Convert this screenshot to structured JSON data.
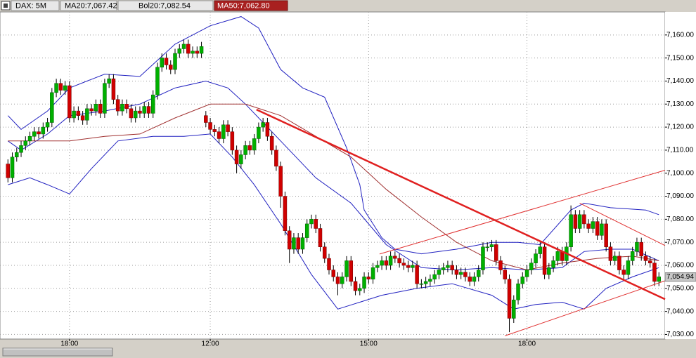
{
  "chart_data": {
    "type": "candlestick",
    "header_labels": [
      "DAX: 5M",
      "MA20:7,067.42",
      "Bol20:7,082.54",
      "MA50:7,062.80"
    ],
    "last_price": {
      "value": 7054.94,
      "label": "7,054.94"
    },
    "up_color": "#00b000",
    "down_color": "#d00000",
    "grid": true,
    "xlim": [
      -1.8,
      149.4
    ],
    "ylim": [
      7028,
      7170
    ],
    "xticks": [
      {
        "value": 14,
        "label": "18:00"
      },
      {
        "value": 46,
        "label": "12:00"
      },
      {
        "value": 82,
        "label": "15:00"
      },
      {
        "value": 118,
        "label": "18:00"
      }
    ],
    "yticks": [
      {
        "value": 7030,
        "label": "7,030.00"
      },
      {
        "value": 7040,
        "label": "7,040.00"
      },
      {
        "value": 7050,
        "label": "7,050.00"
      },
      {
        "value": 7060,
        "label": "7,060.00"
      },
      {
        "value": 7070,
        "label": "7,070.00"
      },
      {
        "value": 7080,
        "label": "7,080.00"
      },
      {
        "value": 7090,
        "label": "7,090.00"
      },
      {
        "value": 7100,
        "label": "7,100.00"
      },
      {
        "value": 7110,
        "label": "7,110.00"
      },
      {
        "value": 7120,
        "label": "7,120.00"
      },
      {
        "value": 7130,
        "label": "7,130.00"
      },
      {
        "value": 7140,
        "label": "7,140.00"
      },
      {
        "value": 7150,
        "label": "7,150.00"
      },
      {
        "value": 7160,
        "label": "7,160.00"
      }
    ],
    "open": [
      7104,
      7098,
      7107,
      7109,
      7112,
      7114,
      7116,
      7118,
      7117,
      7120,
      7122,
      7135,
      7139,
      7136,
      7138,
      7124,
      7127,
      7125,
      7123,
      7128,
      7127,
      7130,
      7126,
      7139,
      7141,
      7132,
      7127,
      7130,
      7128,
      7124,
      7127,
      7126,
      7129,
      7126,
      7134,
      7146,
      7150,
      7147,
      7145,
      7152,
      7154,
      7156,
      7152,
      7153,
      7152,
      7125,
      7122,
      7119,
      7118,
      7115,
      7121,
      7118,
      7110,
      7104,
      7108,
      7112,
      7110,
      7115,
      7120,
      7122,
      7116,
      7110,
      7103,
      7090,
      7075,
      7067,
      7072,
      7067,
      7072,
      7078,
      7080,
      7076,
      7068,
      7063,
      7058,
      7055,
      7052,
      7055,
      7062,
      7053,
      7049,
      7050,
      7055,
      7054,
      7059,
      7060,
      7062,
      7060,
      7064,
      7063,
      7061,
      7060,
      7059,
      7060,
      7052,
      7052,
      7053,
      7054,
      7056,
      7058,
      7059,
      7060,
      7058,
      7056,
      7057,
      7055,
      7053,
      7055,
      7058,
      7068,
      7068,
      7069,
      7062,
      7058,
      7054,
      7037,
      7045,
      7052,
      7055,
      7058,
      7061,
      7065,
      7068,
      7056,
      7059,
      7062,
      7066,
      7062,
      7068,
      7082,
      7076,
      7082,
      7078,
      7076,
      7079,
      7073,
      7078,
      7068,
      7062,
      7064,
      7058,
      7056,
      7062,
      7066,
      7070,
      7064,
      7062,
      7061,
      7053
    ],
    "high": [
      7106,
      7109,
      7111,
      7114,
      7116,
      7118,
      7120,
      7120,
      7122,
      7124,
      7137,
      7141,
      7141,
      7140,
      7140,
      7129,
      7129,
      7127,
      7130,
      7130,
      7132,
      7132,
      7141,
      7143,
      7143,
      7134,
      7132,
      7132,
      7130,
      7129,
      7129,
      7131,
      7131,
      7136,
      7148,
      7152,
      7152,
      7149,
      7154,
      7156,
      7158,
      7158,
      7155,
      7155,
      7157,
      7127,
      7124,
      7121,
      7120,
      7123,
      7123,
      7120,
      7112,
      7110,
      7114,
      7114,
      7117,
      7122,
      7124,
      7124,
      7118,
      7112,
      7105,
      7092,
      7077,
      7074,
      7074,
      7074,
      7080,
      7082,
      7082,
      7078,
      7070,
      7065,
      7060,
      7057,
      7057,
      7064,
      7064,
      7055,
      7052,
      7057,
      7057,
      7061,
      7062,
      7064,
      7064,
      7066,
      7066,
      7065,
      7063,
      7062,
      7062,
      7062,
      7054,
      7055,
      7056,
      7058,
      7060,
      7061,
      7062,
      7062,
      7060,
      7059,
      7059,
      7057,
      7057,
      7060,
      7070,
      7070,
      7071,
      7071,
      7064,
      7060,
      7056,
      7047,
      7054,
      7057,
      7060,
      7063,
      7067,
      7070,
      7070,
      7061,
      7064,
      7068,
      7068,
      7070,
      7086,
      7084,
      7084,
      7084,
      7080,
      7081,
      7081,
      7080,
      7080,
      7070,
      7066,
      7066,
      7060,
      7064,
      7068,
      7072,
      7072,
      7066,
      7064,
      7063,
      7057
    ],
    "low": [
      7096,
      7096,
      7105,
      7107,
      7110,
      7112,
      7114,
      7115,
      7115,
      7118,
      7120,
      7133,
      7134,
      7134,
      7122,
      7122,
      7123,
      7121,
      7121,
      7125,
      7125,
      7124,
      7124,
      7137,
      7130,
      7125,
      7125,
      7126,
      7122,
      7122,
      7124,
      7124,
      7124,
      7124,
      7132,
      7144,
      7145,
      7143,
      7143,
      7150,
      7152,
      7150,
      7150,
      7150,
      7150,
      7120,
      7117,
      7116,
      7113,
      7113,
      7116,
      7108,
      7100,
      7102,
      7106,
      7108,
      7108,
      7113,
      7118,
      7114,
      7108,
      7101,
      7085,
      7073,
      7061,
      7065,
      7065,
      7065,
      7070,
      7076,
      7074,
      7066,
      7061,
      7056,
      7053,
      7047,
      7050,
      7053,
      7051,
      7047,
      7047,
      7048,
      7052,
      7052,
      7057,
      7058,
      7058,
      7058,
      7061,
      7059,
      7058,
      7057,
      7057,
      7050,
      7050,
      7050,
      7051,
      7052,
      7054,
      7056,
      7057,
      7056,
      7054,
      7054,
      7053,
      7051,
      7051,
      7053,
      7056,
      7066,
      7066,
      7060,
      7056,
      7052,
      7031,
      7035,
      7043,
      7050,
      7053,
      7056,
      7059,
      7063,
      7054,
      7054,
      7057,
      7060,
      7060,
      7060,
      7066,
      7074,
      7074,
      7076,
      7074,
      7074,
      7071,
      7071,
      7066,
      7060,
      7060,
      7056,
      7054,
      7054,
      7060,
      7064,
      7062,
      7060,
      7059,
      7051,
      7051
    ],
    "close": [
      7098,
      7107,
      7109,
      7112,
      7114,
      7116,
      7118,
      7117,
      7120,
      7122,
      7135,
      7139,
      7136,
      7138,
      7124,
      7127,
      7125,
      7123,
      7128,
      7127,
      7130,
      7126,
      7139,
      7141,
      7132,
      7127,
      7130,
      7128,
      7124,
      7127,
      7126,
      7129,
      7126,
      7134,
      7146,
      7150,
      7147,
      7145,
      7152,
      7154,
      7156,
      7152,
      7153,
      7152,
      7155,
      7122,
      7119,
      7118,
      7115,
      7121,
      7118,
      7110,
      7104,
      7108,
      7112,
      7110,
      7115,
      7120,
      7122,
      7116,
      7110,
      7103,
      7090,
      7075,
      7067,
      7072,
      7067,
      7072,
      7078,
      7080,
      7076,
      7068,
      7063,
      7058,
      7055,
      7052,
      7055,
      7062,
      7053,
      7049,
      7050,
      7055,
      7054,
      7059,
      7060,
      7062,
      7060,
      7064,
      7063,
      7061,
      7060,
      7059,
      7060,
      7052,
      7052,
      7053,
      7054,
      7056,
      7058,
      7059,
      7060,
      7058,
      7056,
      7057,
      7055,
      7053,
      7055,
      7058,
      7068,
      7068,
      7069,
      7062,
      7058,
      7054,
      7037,
      7045,
      7052,
      7055,
      7058,
      7061,
      7065,
      7068,
      7056,
      7059,
      7062,
      7066,
      7062,
      7068,
      7082,
      7076,
      7082,
      7078,
      7076,
      7079,
      7073,
      7078,
      7068,
      7062,
      7064,
      7058,
      7056,
      7062,
      7066,
      7070,
      7064,
      7062,
      7061,
      7053,
      7055
    ],
    "series": [
      {
        "color": "#2020c0",
        "x": [
          0,
          3,
          9,
          14,
          22,
          30,
          38,
          46,
          53,
          57,
          62,
          67,
          72,
          77,
          80,
          81,
          85,
          88,
          94,
          102,
          110,
          116,
          121,
          128,
          131,
          137,
          145,
          148
        ],
        "values": [
          7125,
          7119,
          7127,
          7137,
          7143,
          7142,
          7156,
          7164,
          7168,
          7163,
          7145,
          7137,
          7133,
          7111,
          7095,
          7084,
          7072,
          7067,
          7065,
          7067,
          7070,
          7070,
          7069,
          7084,
          7087,
          7085,
          7084,
          7082
        ]
      },
      {
        "color": "#2020c0",
        "x": [
          0,
          3,
          9,
          14,
          22,
          30,
          38,
          45,
          50,
          54,
          62,
          70,
          78,
          86,
          94,
          102,
          110,
          118,
          126,
          131,
          137,
          142,
          148
        ],
        "values": [
          7114,
          7110,
          7117,
          7125,
          7127,
          7130,
          7137,
          7140,
          7137,
          7130,
          7114,
          7098,
          7087,
          7069,
          7059,
          7058,
          7059,
          7058,
          7059,
          7066,
          7067,
          7067,
          7062
        ]
      },
      {
        "color": "#2020c0",
        "x": [
          0,
          5,
          9,
          14,
          19,
          25,
          33,
          40,
          46,
          51,
          56,
          62,
          69,
          75,
          80,
          85,
          93,
          101,
          110,
          115,
          120,
          126,
          131,
          136,
          142,
          148
        ],
        "values": [
          7095,
          7098,
          7095,
          7091,
          7102,
          7114,
          7116,
          7116,
          7117,
          7107,
          7095,
          7078,
          7056,
          7041,
          7044,
          7047,
          7050,
          7052,
          7047,
          7041,
          7043,
          7044,
          7041,
          7050,
          7055,
          7059
        ]
      },
      {
        "color": "#a03030",
        "x": [
          0,
          8,
          14,
          22,
          30,
          38,
          46,
          54,
          62,
          70,
          78,
          86,
          94,
          102,
          110,
          118,
          126,
          134,
          142,
          148
        ],
        "values": [
          7114,
          7114,
          7114,
          7116,
          7117,
          7124,
          7130,
          7130,
          7125,
          7116,
          7107,
          7093,
          7081,
          7070,
          7062,
          7058,
          7061,
          7063,
          7064,
          7062
        ]
      }
    ],
    "trendlines": [
      {
        "color": "#e02020",
        "width": 2.5,
        "x": [
          56.5,
          149.4
        ],
        "values": [
          7127.6,
          7045.3
        ]
      },
      {
        "color": "#e03030",
        "width": 1,
        "x": [
          84.5,
          149.4
        ],
        "values": [
          7064.9,
          7101.3
        ]
      },
      {
        "color": "#e03030",
        "width": 1,
        "x": [
          113,
          149.4
        ],
        "values": [
          7029.4,
          7053.3
        ]
      },
      {
        "color": "#e03030",
        "width": 1,
        "x": [
          130,
          149.4
        ],
        "values": [
          7087,
          7068.6
        ]
      }
    ]
  }
}
